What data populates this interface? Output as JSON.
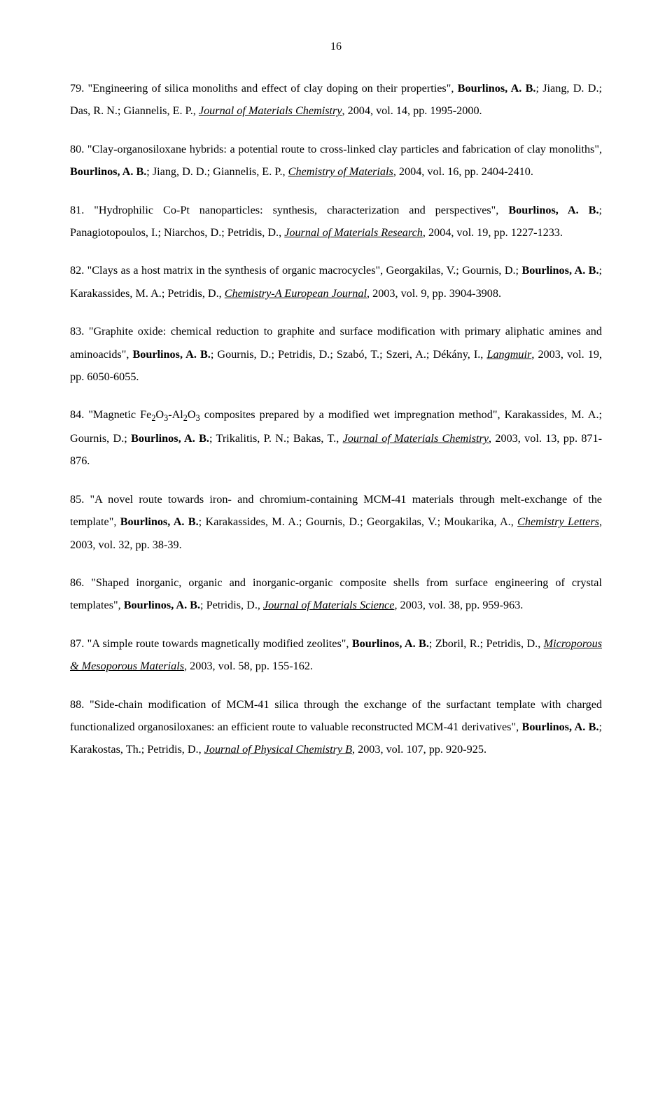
{
  "pageNumber": "16",
  "refs": [
    {
      "num": "79.",
      "pre": " \"Engineering of silica monoliths and effect of clay doping on their properties\", ",
      "bold": "Bourlinos, A. B.",
      "post1": "; Jiang, D. D.; Das, R. N.; Giannelis, E. P., ",
      "journal": "Journal of Materials Chemistry",
      "post2": ", 2004, vol. 14, pp. 1995-2000."
    },
    {
      "num": "80.",
      "pre": " \"Clay-organosiloxane hybrids: a potential route to cross-linked clay particles and fabrication of clay monoliths\", ",
      "bold": "Bourlinos, A. B.",
      "post1": "; Jiang, D. D.; Giannelis, E. P., ",
      "journal": "Chemistry of Materials",
      "post2": ", 2004, vol. 16, pp. 2404-2410."
    },
    {
      "num": "81.",
      "pre": " \"Hydrophilic Co-Pt nanoparticles: synthesis, characterization and perspectives\", ",
      "bold": "Bourlinos, A. B.",
      "post1": "; Panagiotopoulos, I.; Niarchos, D.; Petridis, D., ",
      "journal": "Journal of Materials Research",
      "post2": ", 2004, vol. 19, pp. 1227-1233."
    },
    {
      "num": "82.",
      "pre": " \"Clays as a host matrix in the synthesis of organic macrocycles\", Georgakilas, V.; Gournis, D.; ",
      "bold": "Bourlinos, A. B.",
      "post1": "; Karakassides, M. A.; Petridis, D., ",
      "journal": "Chemistry-A European Journal",
      "post2": ", 2003, vol. 9, pp. 3904-3908."
    },
    {
      "num": "83.",
      "pre": " \"Graphite oxide: chemical reduction to graphite and surface modification with primary aliphatic amines and aminoacids\", ",
      "bold": "Bourlinos, A. B.",
      "post1": "; Gournis, D.; Petridis, D.; Szabó, T.; Szeri, A.; Dékány, I., ",
      "journal": "Langmuir",
      "post2": ", 2003, vol. 19, pp. 6050-6055."
    },
    {
      "num": "84.",
      "preHtml": " \"Magnetic Fe<sub>2</sub>O<sub>3</sub>-Al<sub>2</sub>O<sub>3</sub> composites prepared by a modified wet impregnation method\", Karakassides, M. A.; Gournis, D.; ",
      "bold": "Bourlinos, A. B.",
      "post1": "; Trikalitis, P. N.; Bakas, T., ",
      "journal": "Journal of Materials Chemistry",
      "post2": ", 2003, vol. 13, pp. 871-876."
    },
    {
      "num": "85.",
      "pre": " \"A novel route towards iron- and chromium-containing MCM-41 materials through melt-exchange of the template\", ",
      "bold": "Bourlinos, A. B.",
      "post1": "; Karakassides, M. A.; Gournis, D.; Georgakilas, V.; Moukarika, A., ",
      "journal": "Chemistry Letters",
      "post2": ", 2003, vol. 32, pp. 38-39."
    },
    {
      "num": "86.",
      "pre": " \"Shaped inorganic, organic and inorganic-organic composite shells from surface engineering of crystal templates\", ",
      "bold": "Bourlinos, A. B.",
      "post1": "; Petridis, D., ",
      "journal": "Journal of Materials Science",
      "post2": ", 2003, vol. 38, pp. 959-963."
    },
    {
      "num": "87.",
      "pre": " \"A simple route towards magnetically modified zeolites\", ",
      "bold": "Bourlinos, A. B.",
      "post1": "; Zboril, R.; Petridis, D., ",
      "journal": "Microporous & Mesoporous Materials",
      "post2": ", 2003, vol. 58, pp. 155-162."
    },
    {
      "num": "88.",
      "pre": " \"Side-chain modification of MCM-41 silica through the exchange of the surfactant template with charged functionalized organosiloxanes: an efficient route to valuable reconstructed MCM-41 derivatives\", ",
      "bold": "Bourlinos, A. B.",
      "post1": "; Karakostas, Th.; Petridis, D., ",
      "journal": "Journal of Physical Chemistry B",
      "post2": ", 2003, vol. 107, pp. 920-925."
    }
  ]
}
